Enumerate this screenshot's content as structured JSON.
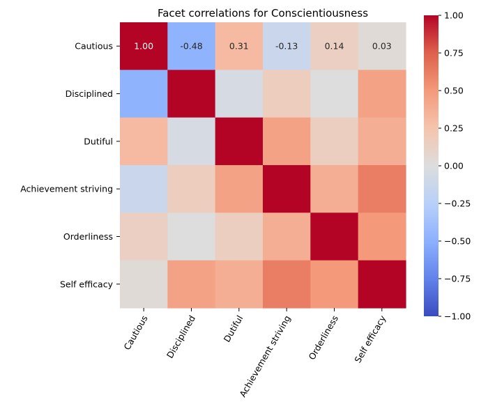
{
  "chart_data": {
    "type": "heatmap",
    "title": "Facet correlations for Conscientiousness",
    "xlabel": "",
    "ylabel": "",
    "row_labels": [
      "Cautious",
      "Disciplined",
      "Dutiful",
      "Achievement striving",
      "Orderliness",
      "Self efficacy"
    ],
    "col_labels": [
      "Cautious",
      "Disciplined",
      "Dutiful",
      "Achievement striving",
      "Orderliness",
      "Self efficacy"
    ],
    "values": [
      [
        1.0,
        -0.48,
        0.31,
        -0.13,
        0.14,
        0.03
      ],
      [
        -0.48,
        1.0,
        -0.05,
        0.16,
        0.0,
        0.45
      ],
      [
        0.31,
        -0.05,
        1.0,
        0.45,
        0.15,
        0.38
      ],
      [
        -0.13,
        0.16,
        0.45,
        1.0,
        0.38,
        0.62
      ],
      [
        0.14,
        0.0,
        0.15,
        0.38,
        1.0,
        0.5
      ],
      [
        0.03,
        0.45,
        0.38,
        0.62,
        0.5,
        1.0
      ]
    ],
    "annotated_row": 0,
    "value_labels": [
      "1.00",
      "-0.48",
      "0.31",
      "-0.13",
      "0.14",
      "0.03"
    ],
    "colormap": "coolwarm",
    "vmin": -1.0,
    "vmax": 1.0,
    "colorbar_ticks": [
      "1.00",
      "0.75",
      "0.50",
      "0.25",
      "0.00",
      "−0.25",
      "−0.50",
      "−0.75",
      "−1.00"
    ],
    "grid": false
  }
}
